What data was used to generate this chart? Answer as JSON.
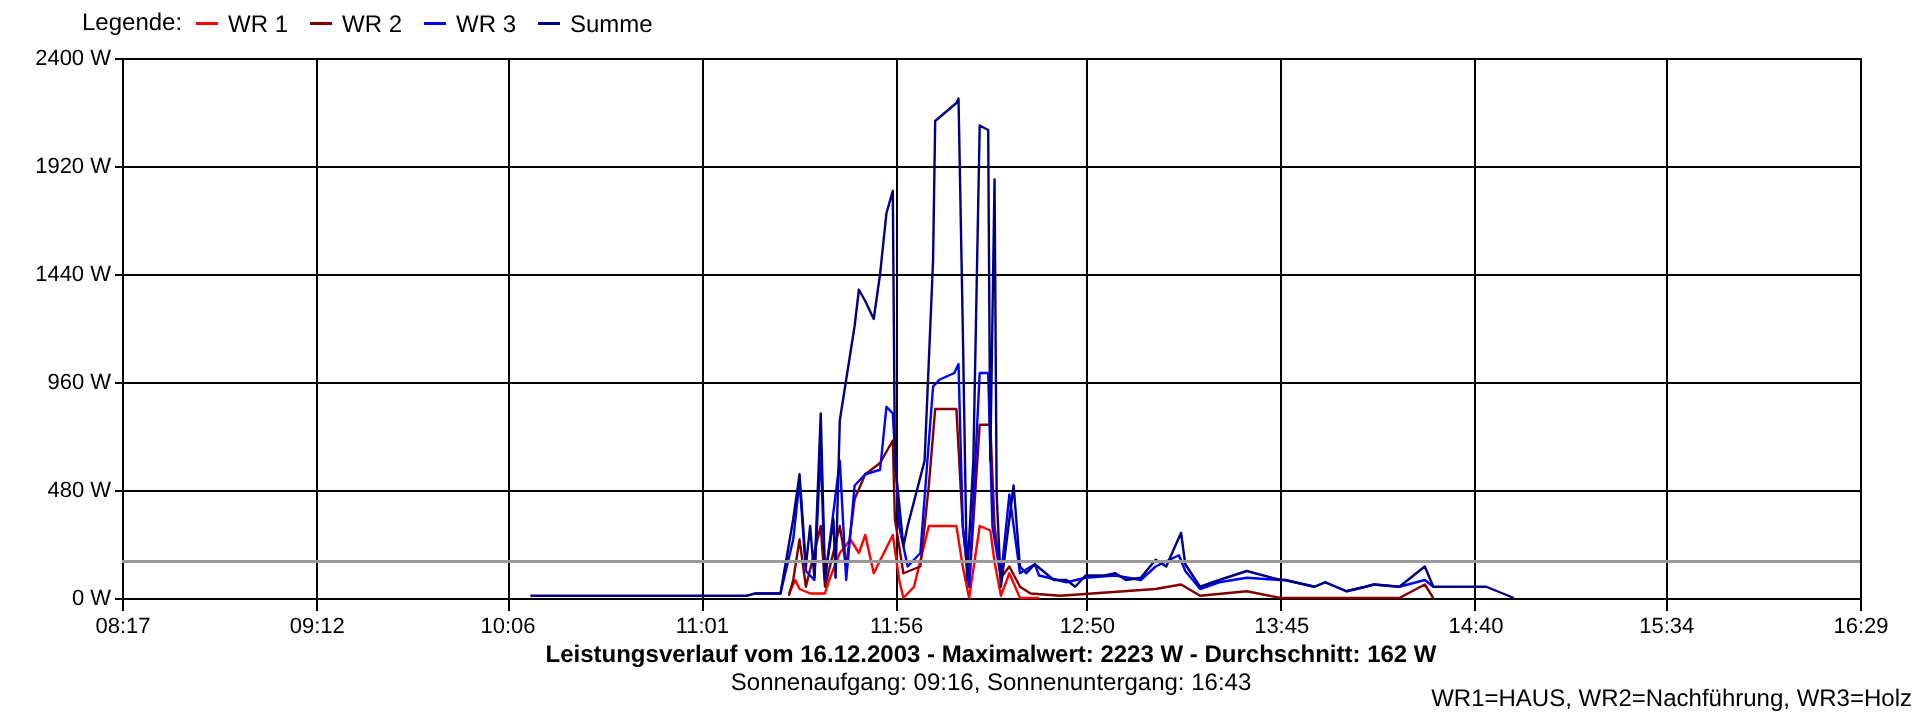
{
  "chart_data": {
    "type": "line",
    "title": "Leistungsverlauf vom 16.12.2003 - Maximalwert: 2223 W - Durchschnitt: 162 W",
    "subtitle": "Sonnenaufgang: 09:16, Sonnenuntergang: 16:43",
    "legend_title": "Legende:",
    "annotations": [
      "WR1=HAUS, WR2=Nachführung, WR3=Holz"
    ],
    "series": [
      {
        "name": "WR 1",
        "color": "#ff0000",
        "x": [
          11.43,
          11.46,
          11.48,
          11.53,
          11.6,
          11.62,
          11.67,
          11.72,
          11.76,
          11.79,
          11.83,
          11.92,
          11.95,
          11.97,
          12.02,
          12.09,
          12.12,
          12.22,
          12.25,
          12.28,
          12.33,
          12.38,
          12.4,
          12.43,
          12.47,
          12.52,
          12.61
        ],
        "values": [
          20,
          80,
          40,
          20,
          20,
          80,
          200,
          260,
          200,
          280,
          110,
          280,
          80,
          0,
          50,
          320,
          320,
          320,
          140,
          0,
          320,
          300,
          160,
          10,
          110,
          0,
          0
        ]
      },
      {
        "name": "WR 2",
        "color": "#800000",
        "x": [
          11.43,
          11.45,
          11.48,
          11.51,
          11.58,
          11.6,
          11.67,
          11.7,
          11.74,
          11.79,
          11.86,
          11.92,
          11.93,
          11.97,
          12.05,
          12.09,
          12.12,
          12.22,
          12.25,
          12.28,
          12.33,
          12.38,
          12.4,
          12.43,
          12.47,
          12.52,
          12.57,
          12.71,
          13.16,
          13.28,
          13.37,
          13.59,
          13.75,
          14.31,
          14.43,
          14.47
        ],
        "values": [
          10,
          80,
          260,
          50,
          320,
          50,
          320,
          140,
          440,
          550,
          600,
          700,
          350,
          110,
          140,
          500,
          840,
          840,
          320,
          50,
          770,
          770,
          320,
          90,
          140,
          50,
          20,
          10,
          40,
          60,
          10,
          30,
          0,
          0,
          60,
          0
        ]
      },
      {
        "name": "WR 3",
        "color": "#0000ff",
        "x": [
          11.27,
          11.39,
          11.45,
          11.48,
          11.51,
          11.55,
          11.58,
          11.6,
          11.67,
          11.7,
          11.74,
          11.79,
          11.86,
          11.89,
          11.92,
          11.95,
          11.99,
          12.05,
          12.11,
          12.14,
          12.21,
          12.23,
          12.25,
          12.28,
          12.33,
          12.37,
          12.39,
          12.43,
          12.47,
          12.52,
          12.59,
          12.61,
          12.74,
          12.83,
          12.97,
          13.09,
          13.16,
          13.27,
          13.3,
          13.37,
          13.46,
          13.59,
          13.75,
          13.77,
          13.91,
          13.96,
          14.06,
          14.15,
          14.19,
          14.31,
          14.43,
          14.47
        ],
        "values": [
          20,
          20,
          260,
          520,
          120,
          80,
          660,
          80,
          610,
          80,
          500,
          550,
          570,
          850,
          820,
          320,
          140,
          200,
          940,
          970,
          1000,
          1040,
          320,
          50,
          1000,
          1000,
          320,
          90,
          460,
          110,
          150,
          100,
          70,
          90,
          100,
          80,
          140,
          190,
          120,
          40,
          70,
          90,
          80,
          80,
          50,
          70,
          30,
          50,
          60,
          50,
          80,
          50
        ]
      },
      {
        "name": "Summe",
        "color": "#000080",
        "x": [
          10.21,
          10.35,
          10.44,
          10.59,
          10.87,
          10.96,
          11.23,
          11.27,
          11.39,
          11.45,
          11.48,
          11.51,
          11.53,
          11.55,
          11.58,
          11.6,
          11.64,
          11.65,
          11.67,
          11.7,
          11.74,
          11.76,
          11.79,
          11.83,
          11.86,
          11.89,
          11.92,
          11.93,
          11.97,
          11.99,
          12.07,
          12.11,
          12.12,
          12.17,
          12.22,
          12.23,
          12.25,
          12.27,
          12.3,
          12.33,
          12.37,
          12.38,
          12.4,
          12.41,
          12.43,
          12.45,
          12.49,
          12.52,
          12.55,
          12.59,
          12.68,
          12.74,
          12.78,
          12.83,
          12.92,
          12.97,
          13.02,
          13.09,
          13.16,
          13.21,
          13.28,
          13.3,
          13.37,
          13.46,
          13.59,
          13.75,
          13.77,
          13.91,
          13.96,
          14.06,
          14.15,
          14.19,
          14.31,
          14.43,
          14.47,
          14.62,
          14.72,
          14.85
        ],
        "values": [
          10,
          10,
          10,
          10,
          10,
          10,
          10,
          20,
          20,
          350,
          550,
          140,
          320,
          90,
          820,
          90,
          350,
          90,
          790,
          970,
          1210,
          1370,
          1320,
          1240,
          1440,
          1710,
          1810,
          610,
          230,
          320,
          610,
          1500,
          2120,
          2160,
          2200,
          2220,
          1210,
          80,
          610,
          2100,
          2080,
          610,
          1860,
          460,
          50,
          200,
          500,
          140,
          110,
          150,
          80,
          80,
          50,
          100,
          100,
          110,
          80,
          90,
          170,
          140,
          290,
          150,
          50,
          80,
          120,
          80,
          80,
          50,
          70,
          30,
          50,
          60,
          50,
          140,
          50,
          50,
          50,
          0
        ]
      }
    ],
    "xlim": [
      8.2833,
      16.4833
    ],
    "xticks": [
      {
        "value": 8.2833,
        "label": "08:17"
      },
      {
        "value": 9.2,
        "label": "09:12"
      },
      {
        "value": 10.1,
        "label": "10:06"
      },
      {
        "value": 11.0167,
        "label": "11:01"
      },
      {
        "value": 11.9333,
        "label": "11:56"
      },
      {
        "value": 12.8333,
        "label": "12:50"
      },
      {
        "value": 13.75,
        "label": "13:45"
      },
      {
        "value": 14.6667,
        "label": "14:40"
      },
      {
        "value": 15.5667,
        "label": "15:34"
      },
      {
        "value": 16.4833,
        "label": "16:29"
      }
    ],
    "ylim": [
      0,
      2400
    ],
    "yticks": [
      {
        "value": 0,
        "label": "0 W"
      },
      {
        "value": 480,
        "label": "480 W"
      },
      {
        "value": 960,
        "label": "960 W"
      },
      {
        "value": 1440,
        "label": "1440 W"
      },
      {
        "value": 1920,
        "label": "1920 W"
      },
      {
        "value": 2400,
        "label": "2400 W"
      }
    ],
    "ref_lines": [
      {
        "axis": "y",
        "value": 162,
        "color": "#999999"
      }
    ],
    "grid": true,
    "legend": "top left",
    "line_style": "solid",
    "marker": "none"
  }
}
